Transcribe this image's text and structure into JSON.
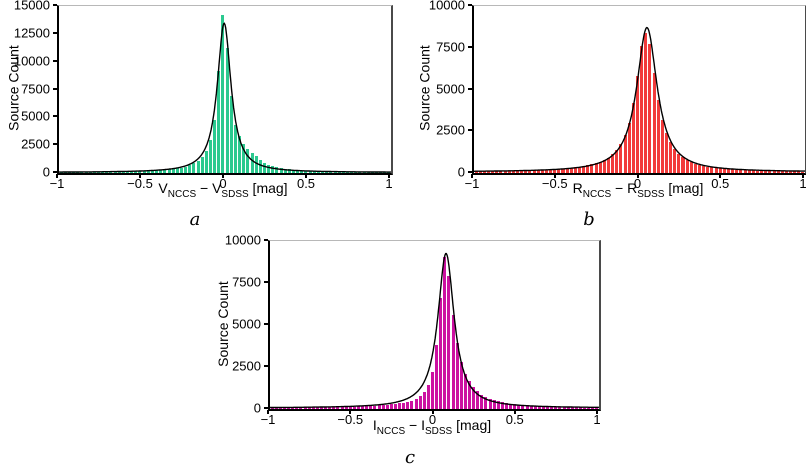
{
  "figure": {
    "background": "#ffffff"
  },
  "chart_data": [
    {
      "panel": "a",
      "type": "bar",
      "subtype": "histogram-with-fit",
      "caption": "a",
      "ylabel": "Source Count",
      "xlabel": {
        "band1": "V",
        "sub1": "NCCS",
        "sep": " − ",
        "band2": "V",
        "sub2": "SDSS",
        "unit": " [mag]"
      },
      "bar_color": "#2bc98f",
      "fit_color": "#000000",
      "xlim": [
        -1,
        1
      ],
      "ylim": [
        0,
        15000
      ],
      "xtick_values": [
        -1,
        -0.5,
        0,
        0.5,
        1
      ],
      "xticks": [
        "−1",
        "−0.5",
        "0",
        "0.5",
        "1"
      ],
      "ytick_values": [
        0,
        2500,
        5000,
        7500,
        10000,
        12500,
        15000
      ],
      "yticks": [
        "0",
        "2500",
        "5000",
        "7500",
        "10000",
        "12500",
        "15000"
      ],
      "grid": false,
      "legend": null,
      "bins": {
        "start": -1,
        "width": 0.025
      },
      "counts": [
        86,
        88,
        90,
        92,
        95,
        97,
        100,
        103,
        106,
        110,
        114,
        118,
        122,
        127,
        133,
        140,
        147,
        155,
        165,
        175,
        187,
        200,
        216,
        235,
        258,
        285,
        320,
        362,
        415,
        483,
        570,
        690,
        855,
        1090,
        1440,
        2000,
        2950,
        4800,
        9200,
        14200,
        11200,
        6900,
        4300,
        3300,
        2600,
        2200,
        1800,
        1500,
        1150,
        900,
        720,
        600,
        500,
        430,
        370,
        320,
        280,
        250,
        225,
        205,
        188,
        172,
        158,
        146,
        136,
        127,
        119,
        112,
        106,
        100,
        95,
        90,
        86,
        82,
        78,
        75,
        72,
        69,
        66,
        64
      ],
      "fit": {
        "type": "lorentzian",
        "peak": 13400,
        "center": -0.005,
        "hwhm": 0.05,
        "base": 50
      }
    },
    {
      "panel": "b",
      "type": "bar",
      "subtype": "histogram-with-fit",
      "caption": "b",
      "ylabel": "Source Count",
      "xlabel": {
        "band1": "R",
        "sub1": "NCCS",
        "sep": " − ",
        "band2": "R",
        "sub2": "SDSS",
        "unit": " [mag]"
      },
      "bar_color": "#f23b3b",
      "fit_color": "#000000",
      "xlim": [
        -1,
        1
      ],
      "ylim": [
        0,
        10000
      ],
      "xtick_values": [
        -1,
        -0.5,
        0,
        0.5,
        1
      ],
      "xticks": [
        "−1",
        "−0.5",
        "0",
        "0.5",
        "1"
      ],
      "ytick_values": [
        0,
        2500,
        5000,
        7500,
        10000
      ],
      "yticks": [
        "0",
        "2500",
        "5000",
        "7500",
        "10000"
      ],
      "grid": false,
      "legend": null,
      "bins": {
        "start": -1,
        "width": 0.025
      },
      "counts": [
        112,
        115,
        118,
        121,
        124,
        127,
        131,
        135,
        139,
        144,
        149,
        155,
        161,
        168,
        176,
        184,
        194,
        205,
        217,
        231,
        247,
        265,
        286,
        310,
        338,
        371,
        410,
        457,
        513,
        583,
        670,
        780,
        925,
        1115,
        1370,
        1730,
        2250,
        3020,
        4180,
        5800,
        7600,
        8400,
        7700,
        6000,
        4400,
        3200,
        2400,
        1850,
        1450,
        1150,
        930,
        770,
        650,
        560,
        490,
        432,
        385,
        345,
        312,
        284,
        260,
        239,
        221,
        205,
        191,
        178,
        167,
        157,
        148,
        140,
        133,
        126,
        120,
        115,
        110,
        105,
        101,
        97,
        93,
        90
      ],
      "fit": {
        "type": "lorentzian",
        "peak": 8650,
        "center": 0.045,
        "hwhm": 0.075,
        "base": 60
      }
    },
    {
      "panel": "c",
      "type": "bar",
      "subtype": "histogram-with-fit",
      "caption": "c",
      "ylabel": "Source Count",
      "xlabel": {
        "band1": "I",
        "sub1": "NCCS",
        "sep": " − ",
        "band2": "I",
        "sub2": "SDSS",
        "unit": " [mag]"
      },
      "bar_color": "#cc11a1",
      "fit_color": "#000000",
      "xlim": [
        -1,
        1
      ],
      "ylim": [
        0,
        10000
      ],
      "xtick_values": [
        -1,
        -0.5,
        0,
        0.5,
        1
      ],
      "xticks": [
        "−1",
        "−0.5",
        "0",
        "0.5",
        "1"
      ],
      "ytick_values": [
        0,
        2500,
        5000,
        7500,
        10000
      ],
      "yticks": [
        "0",
        "2500",
        "5000",
        "7500",
        "10000"
      ],
      "grid": false,
      "legend": null,
      "bins": {
        "start": -1,
        "width": 0.025
      },
      "counts": [
        75,
        77,
        79,
        81,
        83,
        85,
        87,
        90,
        92,
        95,
        98,
        101,
        104,
        108,
        112,
        116,
        121,
        126,
        132,
        138,
        145,
        153,
        162,
        172,
        183,
        196,
        211,
        228,
        248,
        272,
        300,
        334,
        376,
        430,
        500,
        600,
        750,
        1000,
        1400,
        2200,
        3800,
        6600,
        9050,
        7900,
        5600,
        3900,
        2800,
        2100,
        1650,
        1300,
        1050,
        860,
        720,
        610,
        520,
        450,
        395,
        350,
        312,
        280,
        253,
        230,
        210,
        193,
        178,
        165,
        153,
        143,
        134,
        126,
        119,
        112,
        106,
        101,
        96,
        92,
        88,
        84,
        81,
        78
      ],
      "fit": {
        "type": "lorentzian",
        "peak": 9200,
        "center": 0.07,
        "hwhm": 0.06,
        "base": 60
      }
    }
  ]
}
